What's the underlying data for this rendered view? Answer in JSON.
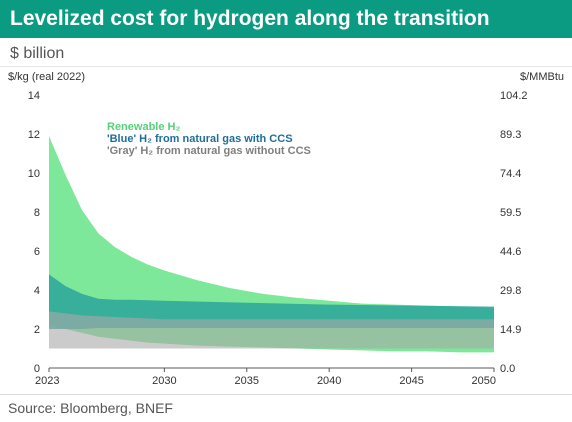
{
  "header": {
    "title": "Levelized cost for hydrogen along the transition",
    "subtitle": "$ billion"
  },
  "footer": {
    "source": "Source: Bloomberg, BNEF"
  },
  "colors": {
    "title_bg": "#0b9b83",
    "renewable": "#7ee89a",
    "blue": "#2aa59a",
    "gray": "#a9a9a9",
    "blue_text": "#1f6f9a",
    "gray_text": "#7f7f7f",
    "renewable_text": "#56d17a"
  },
  "chart_data": {
    "type": "area",
    "left_axis_label": "$/kg (real 2022)",
    "right_axis_label": "$/MMBtu",
    "ylim": [
      0,
      14
    ],
    "xlim": [
      2023,
      2050
    ],
    "y_ticks": [
      0,
      2,
      4,
      6,
      8,
      10,
      12,
      14
    ],
    "y_tick_labels": [
      "0",
      "2",
      "4",
      "6",
      "8",
      "10",
      "12",
      "14"
    ],
    "right_ticks": [
      0,
      2,
      4,
      6,
      8,
      10,
      12,
      14
    ],
    "right_tick_labels": [
      "0.0",
      "14.9",
      "29.8",
      "44.6",
      "59.5",
      "74.4",
      "89.3",
      "104.2"
    ],
    "x_ticks": [
      2023,
      2030,
      2035,
      2040,
      2045,
      2050
    ],
    "x_tick_labels": [
      "2023",
      "2030",
      "2035",
      "2040",
      "2045",
      "2050"
    ],
    "legend": [
      {
        "key": "renewable",
        "text": "Renewable H₂"
      },
      {
        "key": "blue",
        "text": "'Blue' H₂ from natural gas with CCS"
      },
      {
        "key": "gray",
        "text": "'Gray' H₂ from natural gas without CCS"
      }
    ],
    "series": [
      {
        "key": "renewable",
        "x": [
          2023,
          2024,
          2025,
          2026,
          2027,
          2028,
          2029,
          2030,
          2032,
          2034,
          2036,
          2038,
          2040,
          2042,
          2044,
          2046,
          2048,
          2050
        ],
        "low": [
          2.2,
          2.0,
          1.8,
          1.6,
          1.5,
          1.4,
          1.3,
          1.25,
          1.15,
          1.1,
          1.05,
          1.0,
          0.95,
          0.9,
          0.85,
          0.85,
          0.8,
          0.8
        ],
        "high": [
          11.9,
          9.9,
          8.1,
          6.9,
          6.2,
          5.7,
          5.3,
          5.0,
          4.5,
          4.1,
          3.8,
          3.6,
          3.45,
          3.3,
          3.25,
          3.2,
          3.15,
          3.1
        ]
      },
      {
        "key": "blue",
        "x": [
          2023,
          2024,
          2025,
          2026,
          2027,
          2028,
          2030,
          2035,
          2040,
          2045,
          2050
        ],
        "low": [
          2.0,
          2.0,
          2.0,
          2.05,
          2.05,
          2.05,
          2.05,
          2.05,
          2.05,
          2.05,
          2.05
        ],
        "high": [
          4.8,
          4.2,
          3.8,
          3.55,
          3.5,
          3.5,
          3.45,
          3.35,
          3.25,
          3.2,
          3.15
        ]
      },
      {
        "key": "gray",
        "x": [
          2023,
          2025,
          2030,
          2035,
          2040,
          2045,
          2050
        ],
        "low": [
          1.0,
          1.0,
          1.0,
          1.0,
          1.0,
          1.0,
          1.0
        ],
        "high": [
          2.9,
          2.7,
          2.5,
          2.5,
          2.5,
          2.5,
          2.5
        ]
      }
    ]
  }
}
